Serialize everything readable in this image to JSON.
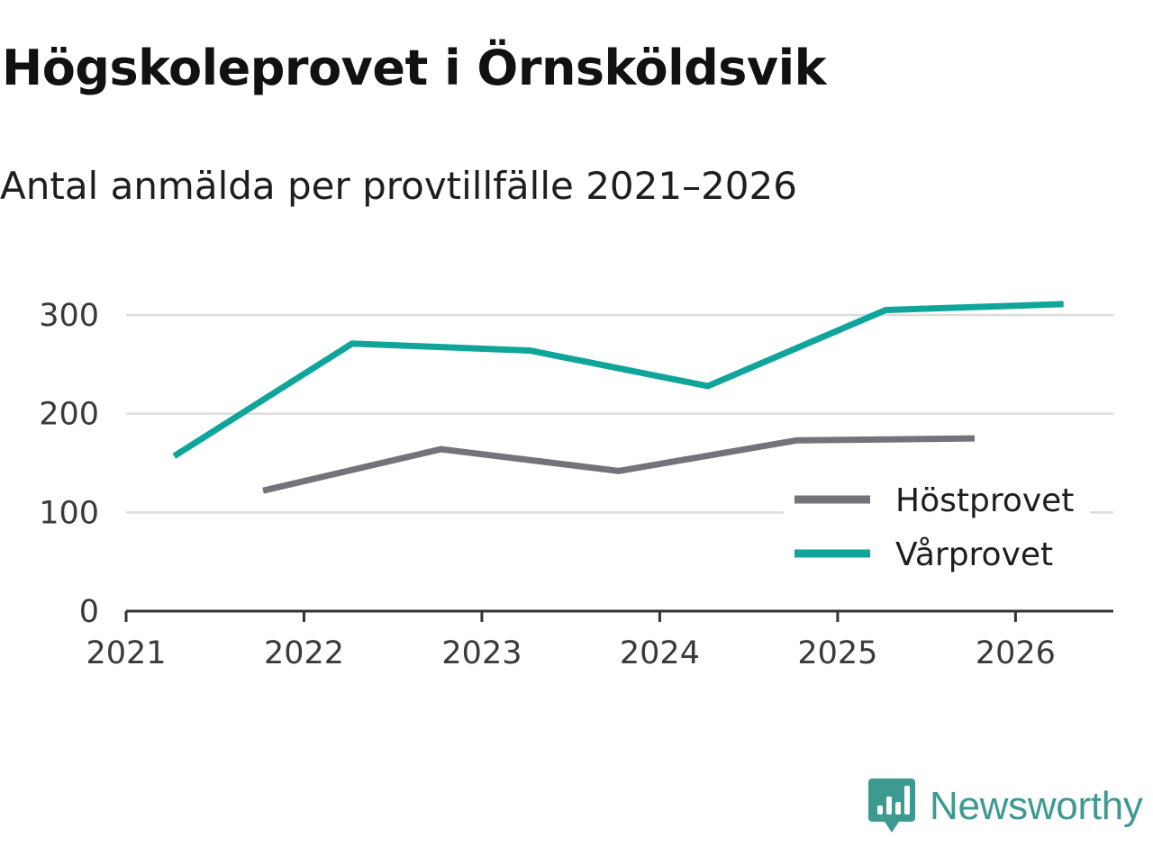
{
  "chart_data": {
    "type": "line",
    "title": "Högskoleprovet i Örnsköldsvik",
    "subtitle": "Antal anmälda per provtillfälle 2021–2026",
    "xlabel": "",
    "ylabel": "",
    "xlim": [
      2021,
      2026.55
    ],
    "ylim": [
      0,
      300
    ],
    "x_ticks": [
      2021,
      2022,
      2023,
      2024,
      2025,
      2026
    ],
    "x_tick_labels": [
      "2021",
      "2022",
      "2023",
      "2024",
      "2025",
      "2026"
    ],
    "y_ticks": [
      0,
      100,
      200,
      300
    ],
    "y_tick_labels": [
      "0",
      "100",
      "200",
      "300"
    ],
    "grid": true,
    "legend_position": "bottom-right",
    "series": [
      {
        "name": "Höstprovet",
        "color": "#75737a",
        "x": [
          2021.77,
          2022.77,
          2023.77,
          2024.77,
          2025.77
        ],
        "values": [
          122,
          164,
          142,
          173,
          175
        ]
      },
      {
        "name": "Vårprovet",
        "color": "#0fa59a",
        "x": [
          2021.27,
          2022.27,
          2023.27,
          2024.27,
          2025.27,
          2026.27
        ],
        "values": [
          157,
          271,
          264,
          228,
          305,
          311
        ]
      }
    ]
  },
  "brand": {
    "name": "Newsworthy",
    "icon": "newsworthy-logo-icon",
    "color": "#3d9a90"
  }
}
